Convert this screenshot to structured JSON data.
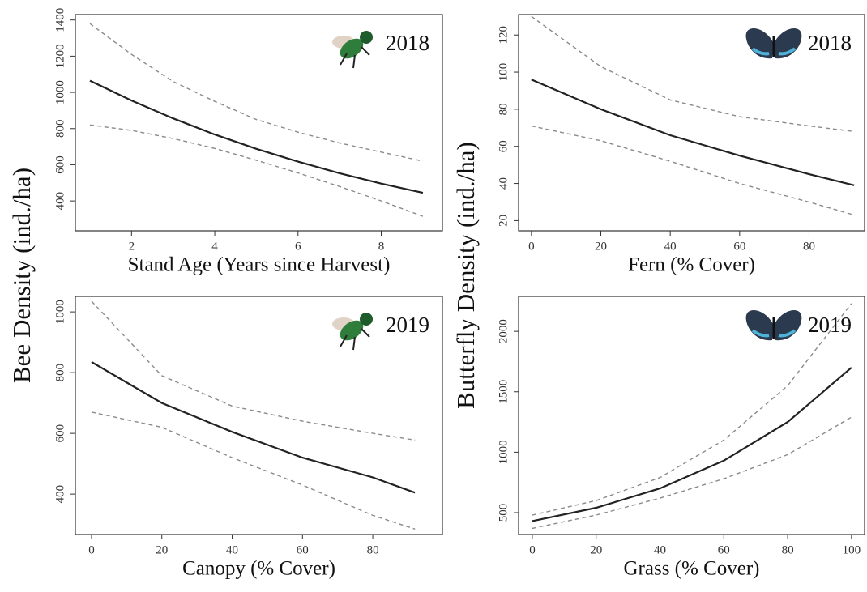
{
  "chart_data": [
    {
      "type": "line",
      "ylabel": "Bee Density (ind./ha)",
      "xlabel": "Stand Age (Years since Harvest)",
      "annotation": "2018",
      "icon": "bee",
      "x": [
        1,
        2,
        3,
        4,
        5,
        6,
        7,
        8,
        9
      ],
      "xlim": [
        0.65,
        9.47
      ],
      "xticks": [
        2,
        4,
        6,
        8
      ],
      "ylim": [
        235,
        1430
      ],
      "yticks": [
        400,
        600,
        800,
        1000,
        1200,
        1400
      ],
      "series": [
        {
          "color": "#222222",
          "style": "solid",
          "values": [
            1065,
            955,
            856,
            767,
            688,
            617,
            553,
            496,
            445
          ]
        },
        {
          "color": "#8a8a8a",
          "style": "dashed",
          "values": [
            1380,
            1210,
            1060,
            950,
            850,
            780,
            720,
            670,
            620
          ]
        },
        {
          "color": "#8a8a8a",
          "style": "dashed",
          "values": [
            820,
            790,
            745,
            690,
            625,
            555,
            480,
            400,
            315
          ]
        }
      ]
    },
    {
      "type": "line",
      "ylabel": "Butterfly Density (ind./ha)",
      "xlabel": "Fern (% Cover)",
      "annotation": "2018",
      "icon": "butterfly",
      "x": [
        0,
        20,
        40,
        60,
        80,
        93
      ],
      "xlim": [
        -3.7,
        96
      ],
      "xticks": [
        0,
        20,
        40,
        60,
        80
      ],
      "ylim": [
        14.5,
        131
      ],
      "yticks": [
        20,
        40,
        60,
        80,
        100,
        120
      ],
      "series": [
        {
          "color": "#222222",
          "style": "solid",
          "values": [
            96,
            80,
            66,
            55,
            45,
            39
          ]
        },
        {
          "color": "#8a8a8a",
          "style": "dashed",
          "values": [
            130,
            103,
            85,
            76,
            71,
            68
          ]
        },
        {
          "color": "#8a8a8a",
          "style": "dashed",
          "values": [
            71,
            63,
            52,
            40,
            30,
            23
          ]
        }
      ]
    },
    {
      "type": "line",
      "xlabel": "Canopy (% Cover)",
      "annotation": "2019",
      "icon": "bee",
      "x": [
        0,
        20,
        40,
        60,
        80,
        92
      ],
      "xlim": [
        -4.6,
        99.8
      ],
      "xticks": [
        0,
        20,
        40,
        60,
        80
      ],
      "ylim": [
        267,
        1051
      ],
      "yticks": [
        400,
        600,
        800,
        1000
      ],
      "series": [
        {
          "color": "#222222",
          "style": "solid",
          "values": [
            835,
            700,
            605,
            520,
            455,
            405
          ]
        },
        {
          "color": "#8a8a8a",
          "style": "dashed",
          "values": [
            1035,
            790,
            690,
            640,
            600,
            578
          ]
        },
        {
          "color": "#8a8a8a",
          "style": "dashed",
          "values": [
            670,
            620,
            520,
            430,
            330,
            285
          ]
        }
      ]
    },
    {
      "type": "line",
      "xlabel": "Grass (% Cover)",
      "annotation": "2019",
      "icon": "butterfly",
      "x": [
        0,
        20,
        40,
        60,
        80,
        100
      ],
      "xlim": [
        -4.3,
        104.1
      ],
      "xticks": [
        0,
        20,
        40,
        60,
        80,
        100
      ],
      "ylim": [
        319,
        2289
      ],
      "yticks": [
        500,
        1000,
        1500,
        2000
      ],
      "series": [
        {
          "color": "#222222",
          "style": "solid",
          "values": [
            430,
            540,
            700,
            930,
            1250,
            1700
          ]
        },
        {
          "color": "#8a8a8a",
          "style": "dashed",
          "values": [
            480,
            600,
            790,
            1100,
            1550,
            2230
          ]
        },
        {
          "color": "#8a8a8a",
          "style": "dashed",
          "values": [
            370,
            480,
            620,
            780,
            980,
            1290
          ]
        }
      ]
    }
  ]
}
